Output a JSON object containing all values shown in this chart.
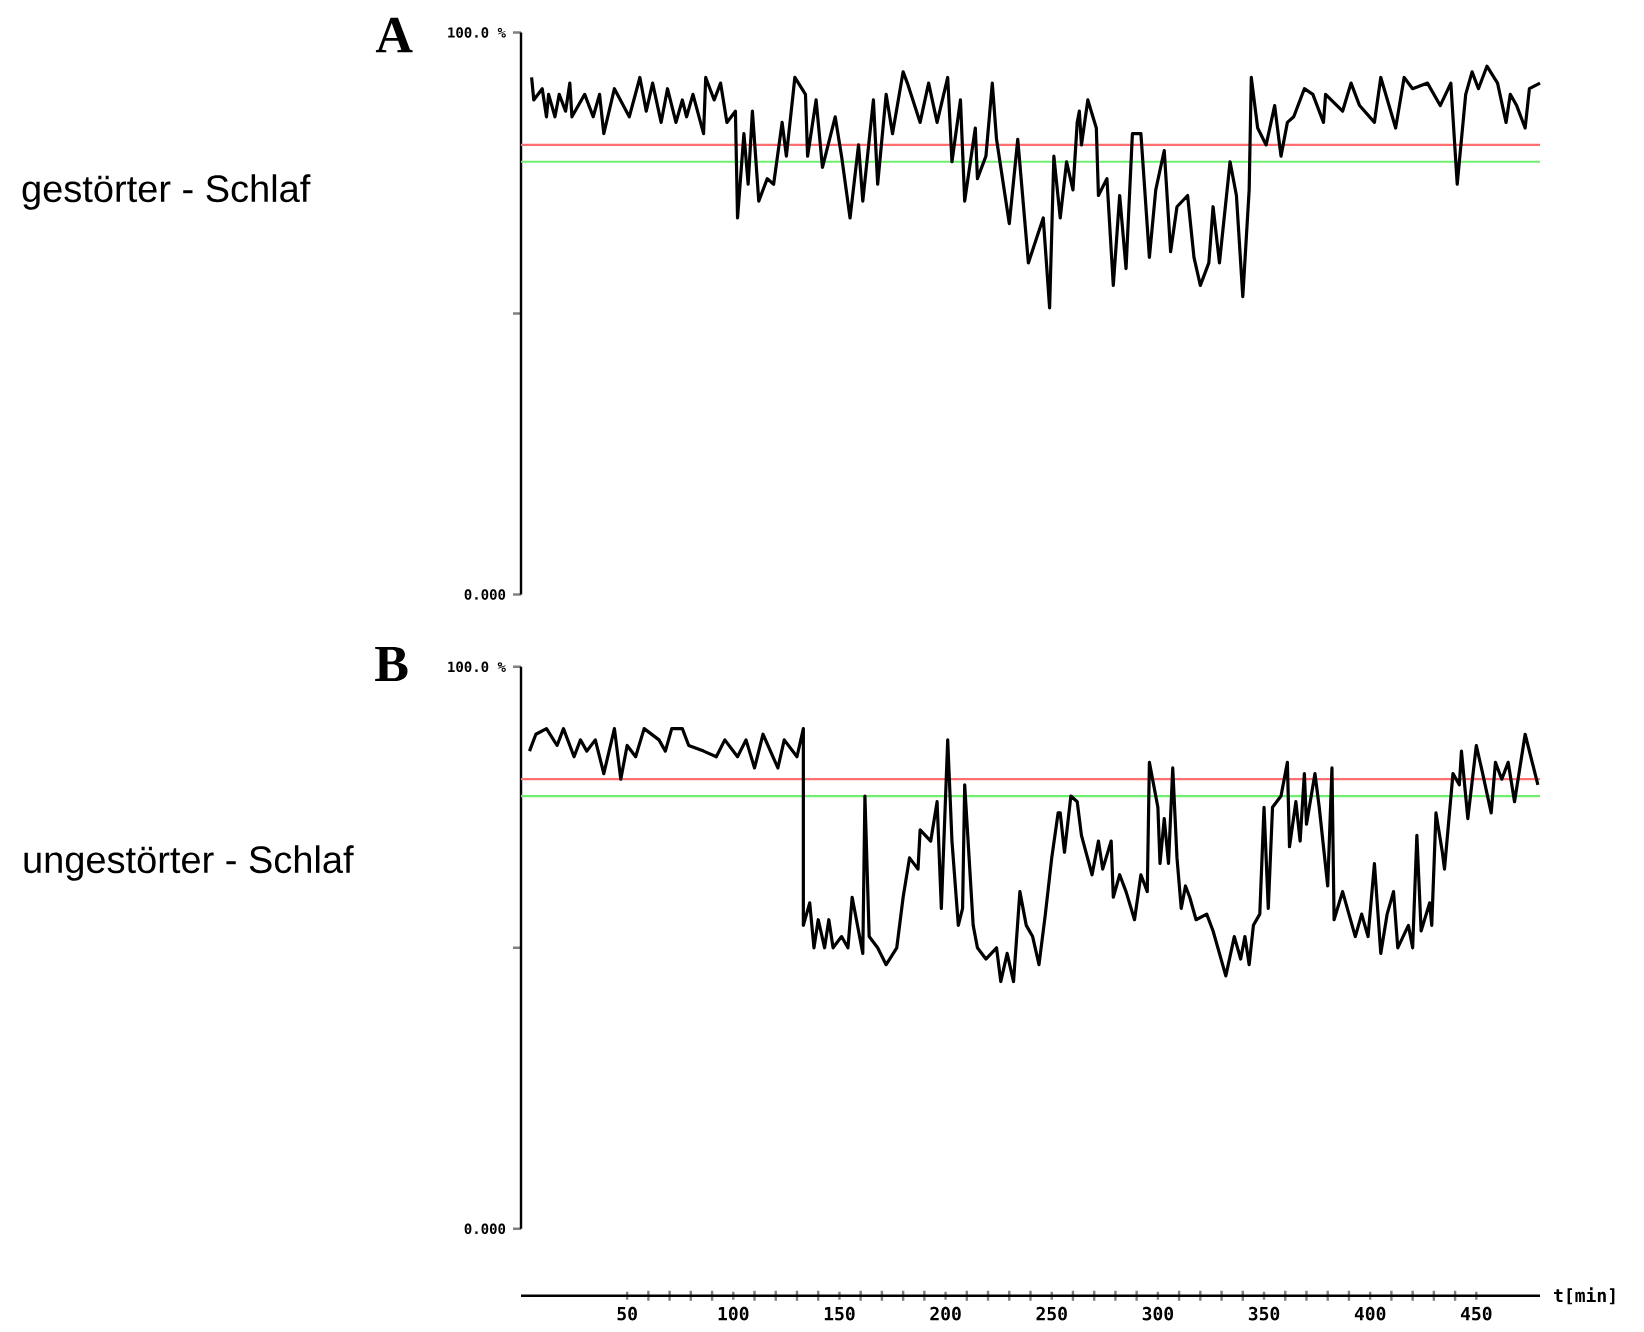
{
  "chart_data": [
    {
      "type": "line",
      "title": "A",
      "ylabel": "gestörter - Schlaf",
      "tick_labels": "y",
      "xlim": [
        0,
        480
      ],
      "ylim": [
        0,
        100
      ],
      "yticks": [
        {
          "value": 0,
          "label": "0.000"
        },
        {
          "value": 50,
          "label": null
        },
        {
          "value": 100,
          "label": "100.0 %"
        }
      ],
      "ref_lines": [
        {
          "axis": "y",
          "value": 80,
          "color": "#ff6f6f"
        },
        {
          "axis": "y",
          "value": 77,
          "color": "#6fef6f"
        }
      ],
      "series": [
        {
          "color": "#000000",
          "x": [
            5,
            6,
            10,
            12,
            13,
            16,
            18,
            21,
            23,
            24,
            30,
            34,
            37,
            39,
            44,
            51,
            56,
            59,
            62,
            66,
            69,
            73,
            76,
            78,
            81,
            86,
            87,
            91,
            94,
            97,
            101,
            102,
            105,
            107,
            109,
            112,
            116,
            119,
            123,
            125,
            129,
            134,
            135,
            139,
            142,
            148,
            151,
            155,
            159,
            161,
            166,
            168,
            172,
            175,
            180,
            182,
            188,
            192,
            196,
            201,
            203,
            207,
            209,
            214,
            215,
            219,
            222,
            224,
            230,
            234,
            239,
            246,
            249,
            251,
            254,
            257,
            260,
            262,
            263,
            264,
            267,
            271,
            272,
            276,
            279,
            282,
            285,
            288,
            292,
            296,
            299,
            303,
            306,
            309,
            314,
            317,
            320,
            324,
            326,
            329,
            334,
            337,
            340,
            343,
            344,
            347,
            351,
            355,
            358,
            361,
            364,
            369,
            373,
            378,
            379,
            387,
            391,
            395,
            402,
            405,
            412,
            416,
            420,
            427,
            433,
            438,
            441,
            445,
            448,
            451,
            455,
            460,
            464,
            466,
            469,
            473,
            475,
            480
          ],
          "values": [
            92,
            88,
            90,
            85,
            89,
            85,
            89,
            86,
            91,
            85,
            89,
            85,
            89,
            82,
            90,
            85,
            92,
            86,
            91,
            84,
            90,
            84,
            88,
            85,
            89,
            82,
            92,
            88,
            91,
            84,
            86,
            67,
            82,
            73,
            86,
            70,
            74,
            73,
            84,
            78,
            92,
            89,
            78,
            88,
            76,
            85,
            78,
            67,
            80,
            70,
            88,
            73,
            89,
            82,
            93,
            91,
            84,
            91,
            84,
            92,
            77,
            88,
            70,
            83,
            74,
            78,
            91,
            81,
            66,
            81,
            59,
            67,
            51,
            78,
            67,
            77,
            72,
            84,
            86,
            80,
            88,
            83,
            71,
            74,
            55,
            71,
            58,
            82,
            82,
            60,
            72,
            79,
            61,
            69,
            71,
            60,
            55,
            59,
            69,
            59,
            77,
            71,
            53,
            72,
            92,
            83,
            80,
            87,
            78,
            84,
            85,
            90,
            89,
            84,
            89,
            86,
            91,
            87,
            84,
            92,
            83,
            92,
            90,
            91,
            87,
            91,
            73,
            89,
            93,
            90,
            94,
            91,
            84,
            89,
            87,
            83,
            90,
            91
          ]
        }
      ]
    },
    {
      "type": "line",
      "title": "B",
      "ylabel": "ungestörter - Schlaf",
      "xlabel": "t[min]",
      "xlim": [
        0,
        480
      ],
      "ylim": [
        0,
        100
      ],
      "xticks": [
        50,
        100,
        150,
        200,
        250,
        300,
        350,
        400,
        450
      ],
      "yticks": [
        {
          "value": 0,
          "label": "0.000"
        },
        {
          "value": 50,
          "label": null
        },
        {
          "value": 100,
          "label": "100.0 %"
        }
      ],
      "ref_lines": [
        {
          "axis": "y",
          "value": 80,
          "color": "#ff6f6f"
        },
        {
          "axis": "y",
          "value": 77,
          "color": "#6fef6f"
        }
      ],
      "series": [
        {
          "color": "#000000",
          "x": [
            4,
            7,
            12,
            17,
            20,
            25,
            28,
            31,
            35,
            39,
            44,
            47,
            50,
            54,
            58,
            65,
            68,
            71,
            76,
            79,
            86,
            92,
            96,
            102,
            106,
            110,
            114,
            121,
            124,
            130,
            133,
            133,
            136,
            138,
            140,
            143,
            145,
            147,
            151,
            154,
            156,
            159,
            161,
            162,
            164,
            168,
            172,
            177,
            180,
            183,
            187,
            188,
            193,
            196,
            198,
            201,
            203,
            206,
            208,
            209,
            213,
            215,
            219,
            224,
            226,
            229,
            232,
            235,
            238,
            241,
            244,
            247,
            250,
            253,
            254,
            256,
            259,
            262,
            264,
            269,
            272,
            274,
            278,
            279,
            282,
            285,
            289,
            292,
            295,
            296,
            300,
            301,
            303,
            305,
            307,
            309,
            311,
            313,
            315,
            318,
            323,
            326,
            329,
            332,
            336,
            339,
            341,
            343,
            345,
            348,
            350,
            352,
            354,
            358,
            361,
            362,
            365,
            367,
            369,
            370,
            374,
            376,
            380,
            382,
            383,
            387,
            390,
            393,
            396,
            399,
            402,
            405,
            408,
            411,
            413,
            418,
            420,
            422,
            424,
            428,
            429,
            431,
            434,
            435,
            439,
            442,
            443,
            446,
            450,
            453,
            457,
            459,
            462,
            465,
            468,
            473,
            477,
            479
          ],
          "values": [
            85,
            88,
            89,
            86,
            89,
            84,
            87,
            85,
            87,
            81,
            89,
            80,
            86,
            84,
            89,
            87,
            85,
            89,
            89,
            86,
            85,
            84,
            87,
            84,
            87,
            82,
            88,
            82,
            87,
            84,
            89,
            54,
            58,
            50,
            55,
            50,
            55,
            50,
            52,
            50,
            59,
            53,
            49,
            77,
            52,
            50,
            47,
            50,
            59,
            66,
            64,
            71,
            69,
            76,
            57,
            87,
            69,
            54,
            57,
            79,
            54,
            50,
            48,
            50,
            44,
            49,
            44,
            60,
            54,
            52,
            47,
            56,
            66,
            74,
            74,
            67,
            77,
            76,
            70,
            63,
            69,
            64,
            69,
            59,
            63,
            60,
            55,
            63,
            60,
            83,
            75,
            65,
            73,
            65,
            82,
            66,
            57,
            61,
            59,
            55,
            56,
            53,
            49,
            45,
            52,
            48,
            52,
            47,
            54,
            56,
            75,
            57,
            75,
            77,
            83,
            68,
            76,
            69,
            81,
            72,
            81,
            75,
            61,
            82,
            55,
            60,
            56,
            52,
            56,
            52,
            65,
            49,
            56,
            60,
            50,
            54,
            50,
            70,
            53,
            58,
            54,
            74,
            67,
            64,
            81,
            79,
            85,
            73,
            86,
            81,
            74,
            83,
            80,
            83,
            76,
            88,
            82,
            79
          ]
        }
      ]
    }
  ]
}
